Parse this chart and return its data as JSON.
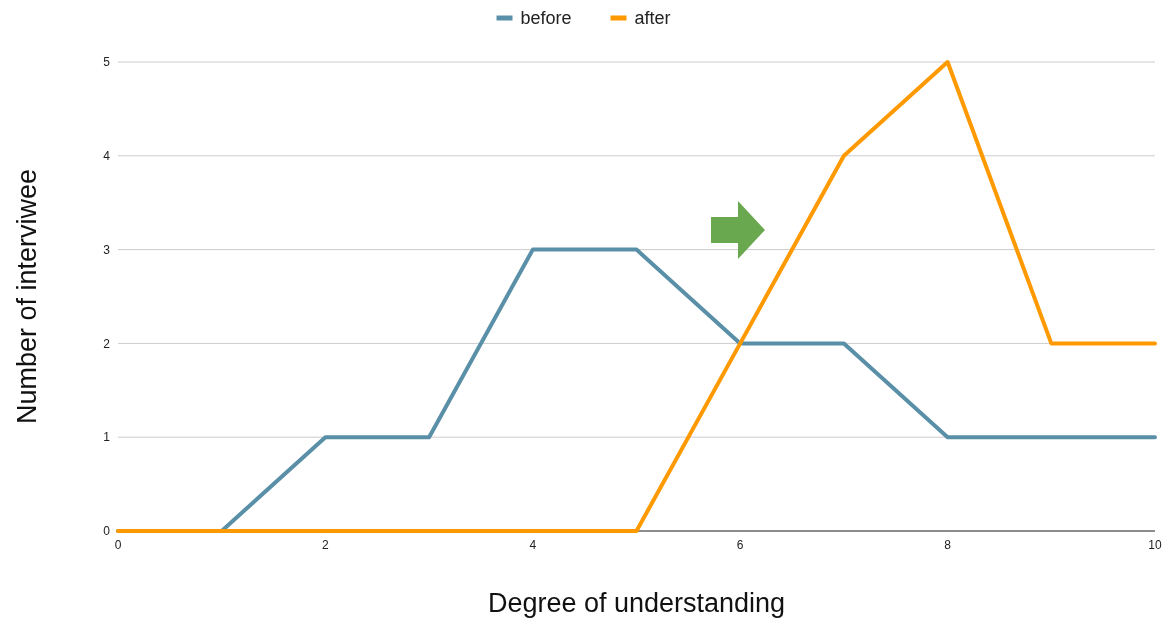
{
  "chart_data": {
    "type": "line",
    "xlabel": "Degree of understanding",
    "ylabel": "Number of interviwee",
    "x": [
      0,
      1,
      2,
      3,
      4,
      5,
      6,
      7,
      8,
      9,
      10
    ],
    "series": [
      {
        "name": "before",
        "color": "#5a8fa8",
        "values": [
          0,
          0,
          1,
          1,
          3,
          3,
          2,
          2,
          1,
          1,
          1
        ]
      },
      {
        "name": "after",
        "color": "#ff9900",
        "values": [
          0,
          0,
          0,
          0,
          0,
          0,
          2,
          4,
          5,
          2,
          2
        ]
      }
    ],
    "xlim": [
      0,
      10
    ],
    "xticks": [
      0,
      2,
      4,
      6,
      8,
      10
    ],
    "ylim": [
      0,
      5
    ],
    "yticks": [
      0,
      1,
      2,
      3,
      4,
      5
    ],
    "grid": "y",
    "legend": "top",
    "marker": "none",
    "line_style": "solid"
  }
}
